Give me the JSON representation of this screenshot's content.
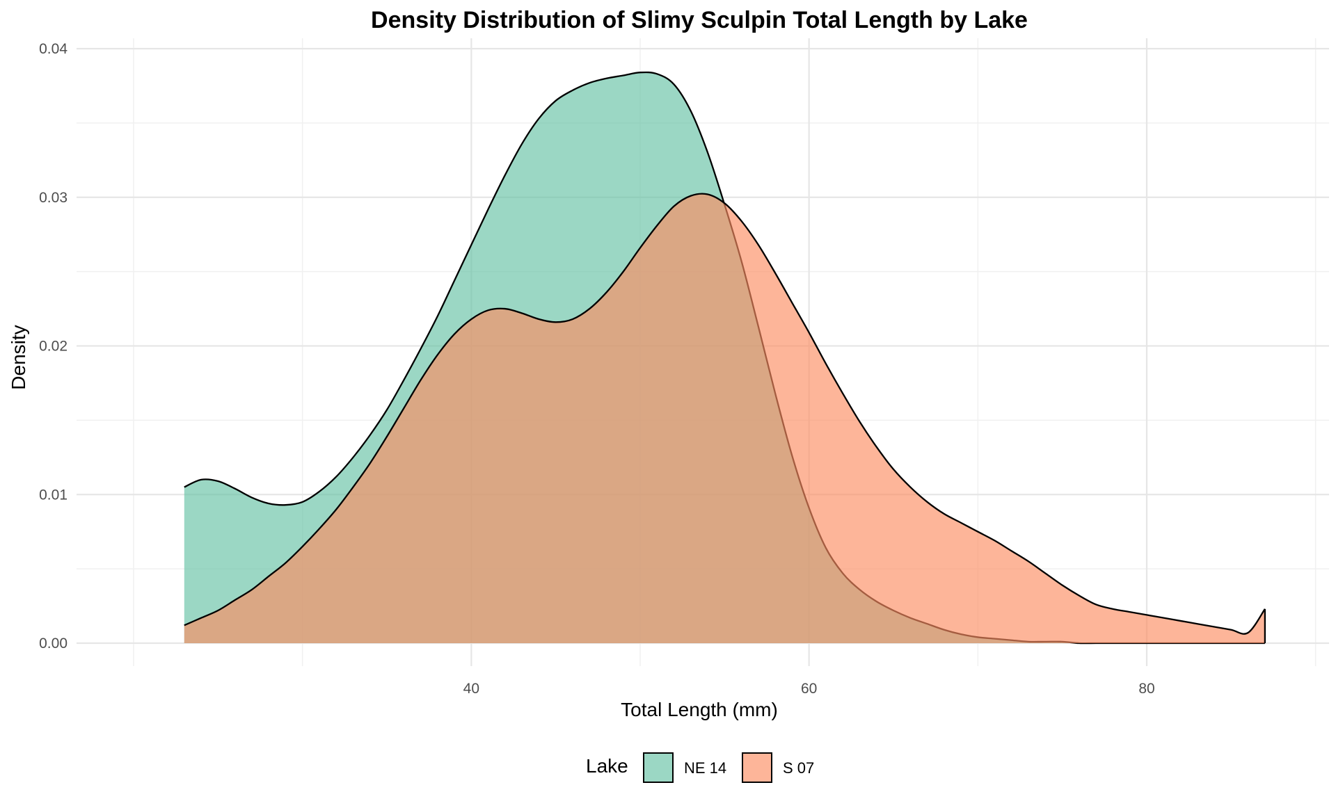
{
  "chart_data": {
    "type": "area",
    "title": "Density Distribution of Slimy Sculpin Total Length by Lake",
    "xlabel": "Total Length (mm)",
    "ylabel": "Density",
    "xlim": [
      20,
      87.5
    ],
    "ylim": [
      0,
      0.04
    ],
    "x_ticks": [
      40,
      60,
      80
    ],
    "x_tick_labels": [
      "40",
      "60",
      "80"
    ],
    "x_minor_ticks": [
      30,
      50,
      70
    ],
    "y_ticks": [
      0,
      0.01,
      0.02,
      0.03,
      0.04
    ],
    "y_tick_labels": [
      "0.00",
      "0.01",
      "0.02",
      "0.03",
      "0.04"
    ],
    "grid": true,
    "legend": {
      "title": "Lake",
      "placement": "bottom"
    },
    "series": [
      {
        "name": "NE 14",
        "color": "#66c2a5",
        "x": [
          23,
          24,
          25,
          26,
          27,
          28,
          29,
          30,
          31,
          32,
          33,
          34,
          35,
          36,
          37,
          38,
          39,
          40,
          41,
          42,
          43,
          44,
          45,
          46,
          47,
          48,
          49,
          50,
          51,
          52,
          53,
          54,
          55,
          56,
          57,
          58,
          59,
          60,
          61,
          62,
          63,
          64,
          65,
          66,
          67,
          68,
          69,
          70,
          71,
          72,
          73,
          74,
          75,
          76,
          77,
          78,
          79,
          80,
          81,
          82,
          83,
          84,
          85,
          86,
          87
        ],
        "y": [
          0.0105,
          0.011,
          0.0109,
          0.0104,
          0.0098,
          0.0094,
          0.0093,
          0.0095,
          0.0102,
          0.0112,
          0.0125,
          0.014,
          0.0157,
          0.0177,
          0.0198,
          0.022,
          0.0244,
          0.0268,
          0.0292,
          0.0315,
          0.0336,
          0.0353,
          0.0365,
          0.0372,
          0.0377,
          0.038,
          0.0382,
          0.0384,
          0.0383,
          0.0376,
          0.0358,
          0.033,
          0.0295,
          0.0257,
          0.0213,
          0.0168,
          0.0126,
          0.0091,
          0.0064,
          0.0047,
          0.0036,
          0.0028,
          0.0022,
          0.0017,
          0.0013,
          0.0009,
          0.0006,
          0.0004,
          0.0003,
          0.0002,
          0.0001,
          0.0001,
          0.0001,
          0.0,
          0.0,
          0.0,
          0.0,
          0.0,
          0.0,
          0.0,
          0.0,
          0.0,
          0.0,
          0.0,
          0.0
        ]
      },
      {
        "name": "S 07",
        "color": "#fc8d62",
        "x": [
          23,
          24,
          25,
          26,
          27,
          28,
          29,
          30,
          31,
          32,
          33,
          34,
          35,
          36,
          37,
          38,
          39,
          40,
          41,
          42,
          43,
          44,
          45,
          46,
          47,
          48,
          49,
          50,
          51,
          52,
          53,
          54,
          55,
          56,
          57,
          58,
          59,
          60,
          61,
          62,
          63,
          64,
          65,
          66,
          67,
          68,
          69,
          70,
          71,
          72,
          73,
          74,
          75,
          76,
          77,
          78,
          79,
          80,
          81,
          82,
          83,
          84,
          85,
          86,
          87
        ],
        "y": [
          0.0012,
          0.0017,
          0.0022,
          0.0029,
          0.0036,
          0.0045,
          0.0054,
          0.0065,
          0.0077,
          0.009,
          0.0105,
          0.0121,
          0.0139,
          0.0158,
          0.0177,
          0.0194,
          0.0208,
          0.0218,
          0.0224,
          0.0225,
          0.0222,
          0.0218,
          0.0216,
          0.0218,
          0.0225,
          0.0236,
          0.025,
          0.0266,
          0.0281,
          0.0294,
          0.0301,
          0.0302,
          0.0296,
          0.0284,
          0.0268,
          0.0249,
          0.0229,
          0.0209,
          0.0188,
          0.0168,
          0.0149,
          0.0132,
          0.0117,
          0.0105,
          0.0095,
          0.0087,
          0.0081,
          0.0075,
          0.0069,
          0.0062,
          0.0055,
          0.0047,
          0.0039,
          0.0032,
          0.0026,
          0.0023,
          0.0021,
          0.0019,
          0.0017,
          0.0015,
          0.0013,
          0.0011,
          0.0009,
          0.0007,
          0.0023
        ]
      }
    ]
  }
}
